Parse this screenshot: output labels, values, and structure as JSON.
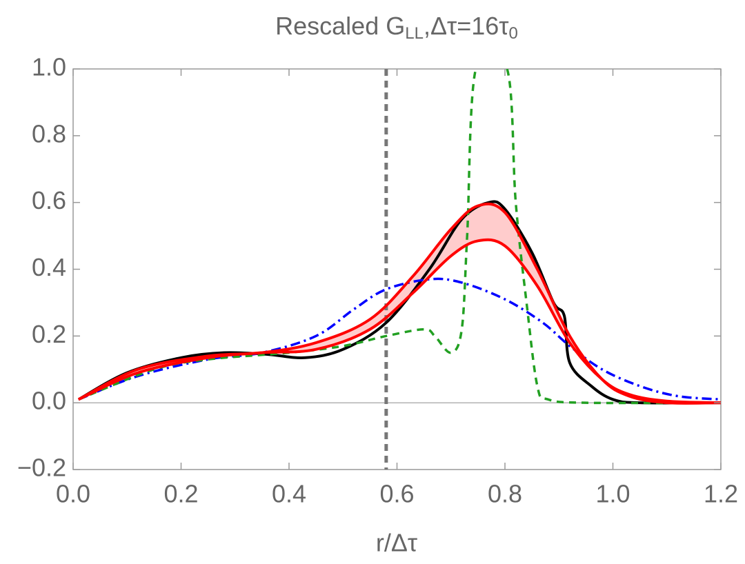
{
  "chart_data": {
    "type": "line",
    "title": [
      "Rescaled G",
      "LL",
      ",Δτ=16τ",
      "0"
    ],
    "x_label": "r/Δτ",
    "xlim": [
      0,
      1.2
    ],
    "ylim": [
      -0.2,
      1.0
    ],
    "xticks": [
      {
        "value": 0,
        "label": "0.0"
      },
      0.2,
      0.4,
      0.6,
      0.8,
      {
        "value": 1,
        "label": "1.0"
      },
      1.2
    ],
    "yticks": [
      {
        "value": -0.2,
        "label": "−0.2"
      },
      {
        "value": 0,
        "label": "0.0"
      },
      0.2,
      0.4,
      0.6,
      0.8,
      {
        "value": 1,
        "label": "1.0"
      }
    ],
    "vline": {
      "x": 0.58,
      "color": "#777777"
    },
    "series": [
      {
        "color": "#000000",
        "style": "solid",
        "x": [
          0.01,
          0.1,
          0.2,
          0.28,
          0.36,
          0.43,
          0.5,
          0.58,
          0.66,
          0.72,
          0.77,
          0.8,
          0.85,
          0.89,
          0.91,
          0.92,
          0.96,
          1.0,
          1.05,
          1.2
        ],
        "values": [
          0.01,
          0.09,
          0.135,
          0.15,
          0.145,
          0.135,
          0.16,
          0.24,
          0.4,
          0.55,
          0.6,
          0.58,
          0.45,
          0.3,
          0.26,
          0.12,
          0.05,
          0.01,
          0,
          0
        ]
      },
      {
        "color": "#0000ff",
        "style": "dashdot",
        "x": [
          0.01,
          0.12,
          0.25,
          0.35,
          0.45,
          0.52,
          0.58,
          0.66,
          0.72,
          0.8,
          0.87,
          0.92,
          0.98,
          1.05,
          1.12,
          1.2
        ],
        "values": [
          0.01,
          0.08,
          0.13,
          0.15,
          0.2,
          0.28,
          0.34,
          0.37,
          0.36,
          0.31,
          0.24,
          0.17,
          0.1,
          0.05,
          0.02,
          0.01
        ]
      },
      {
        "color": "#22a022",
        "style": "dashed",
        "x": [
          0.01,
          0.15,
          0.25,
          0.4,
          0.5,
          0.58,
          0.65,
          0.67,
          0.7,
          0.72,
          0.73,
          0.746,
          0.804,
          0.82,
          0.84,
          0.86,
          0.88,
          0.95,
          1.2
        ],
        "values": [
          0.01,
          0.1,
          0.13,
          0.15,
          0.17,
          0.2,
          0.22,
          0.2,
          0.15,
          0.22,
          0.5,
          1.0,
          1.0,
          0.6,
          0.3,
          0.05,
          0.01,
          0,
          0
        ]
      },
      {
        "color": "#ff0000",
        "style": "solid",
        "fill": "#ffcccc",
        "x": [
          0.01,
          0.12,
          0.25,
          0.35,
          0.45,
          0.55,
          0.63,
          0.7,
          0.75,
          0.8,
          0.86,
          0.92,
          0.98,
          1.03,
          1.1,
          1.2
        ],
        "values": [
          0.01,
          0.1,
          0.14,
          0.15,
          0.18,
          0.25,
          0.38,
          0.52,
          0.59,
          0.57,
          0.4,
          0.2,
          0.07,
          0.02,
          0,
          0
        ]
      },
      {
        "color": "#ff0000",
        "style": "solid",
        "x": [
          0.01,
          0.12,
          0.25,
          0.35,
          0.45,
          0.55,
          0.63,
          0.7,
          0.75,
          0.8,
          0.86,
          0.92,
          0.98,
          1.03,
          1.1,
          1.2
        ],
        "values": [
          0.01,
          0.09,
          0.135,
          0.15,
          0.16,
          0.22,
          0.33,
          0.44,
          0.485,
          0.47,
          0.35,
          0.18,
          0.07,
          0.025,
          0.005,
          0
        ]
      }
    ]
  }
}
